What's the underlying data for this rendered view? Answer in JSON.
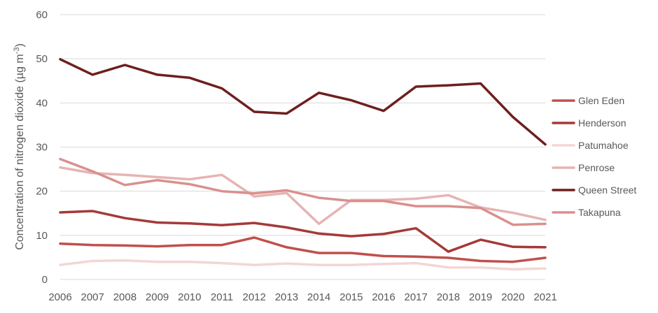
{
  "chart_data": {
    "type": "line",
    "title": "",
    "xlabel": "",
    "ylabel": "Concentration of nitrogen dioxide (µg m",
    "ylabel_superscript": "-3",
    "ylabel_close": ")",
    "ylim": [
      0,
      60
    ],
    "yticks": [
      0,
      10,
      20,
      30,
      40,
      50,
      60
    ],
    "grid": "horizontal",
    "legend_position": "right",
    "x": [
      2006,
      2007,
      2008,
      2009,
      2010,
      2011,
      2012,
      2013,
      2014,
      2015,
      2016,
      2017,
      2018,
      2019,
      2020,
      2021
    ],
    "series": [
      {
        "name": "Glen Eden",
        "color": "#c0504d",
        "values": [
          8.1,
          7.8,
          7.7,
          7.5,
          7.8,
          7.8,
          9.5,
          7.3,
          6.0,
          6.0,
          5.3,
          5.2,
          4.9,
          4.2,
          4.0,
          4.9
        ]
      },
      {
        "name": "Henderson",
        "color": "#a43a38",
        "values": [
          15.2,
          15.5,
          13.9,
          12.9,
          12.7,
          12.3,
          12.8,
          11.8,
          10.4,
          9.8,
          10.3,
          11.6,
          6.3,
          9.0,
          7.4,
          7.3
        ]
      },
      {
        "name": "Patumahoe",
        "color": "#f2d6d5",
        "values": [
          3.3,
          4.2,
          4.3,
          4.0,
          4.0,
          3.7,
          3.3,
          3.6,
          3.3,
          3.3,
          3.5,
          3.7,
          2.7,
          2.7,
          2.3,
          2.5
        ]
      },
      {
        "name": "Penrose",
        "color": "#e6b4b3",
        "values": [
          25.4,
          24.1,
          23.7,
          23.2,
          22.7,
          23.7,
          18.8,
          19.6,
          12.6,
          18.0,
          18.0,
          18.3,
          19.1,
          16.3,
          15.1,
          13.5
        ]
      },
      {
        "name": "Queen Street",
        "color": "#6e1f1f",
        "values": [
          49.9,
          46.4,
          48.6,
          46.4,
          45.7,
          43.3,
          38.0,
          37.6,
          42.3,
          40.6,
          38.2,
          43.7,
          44.0,
          44.4,
          36.8,
          30.6
        ]
      },
      {
        "name": "Takapuna",
        "color": "#d9908e",
        "values": [
          27.3,
          24.5,
          21.4,
          22.5,
          21.6,
          20.0,
          19.5,
          20.2,
          18.5,
          17.8,
          17.8,
          16.6,
          16.6,
          16.2,
          12.4,
          12.6
        ]
      }
    ]
  }
}
